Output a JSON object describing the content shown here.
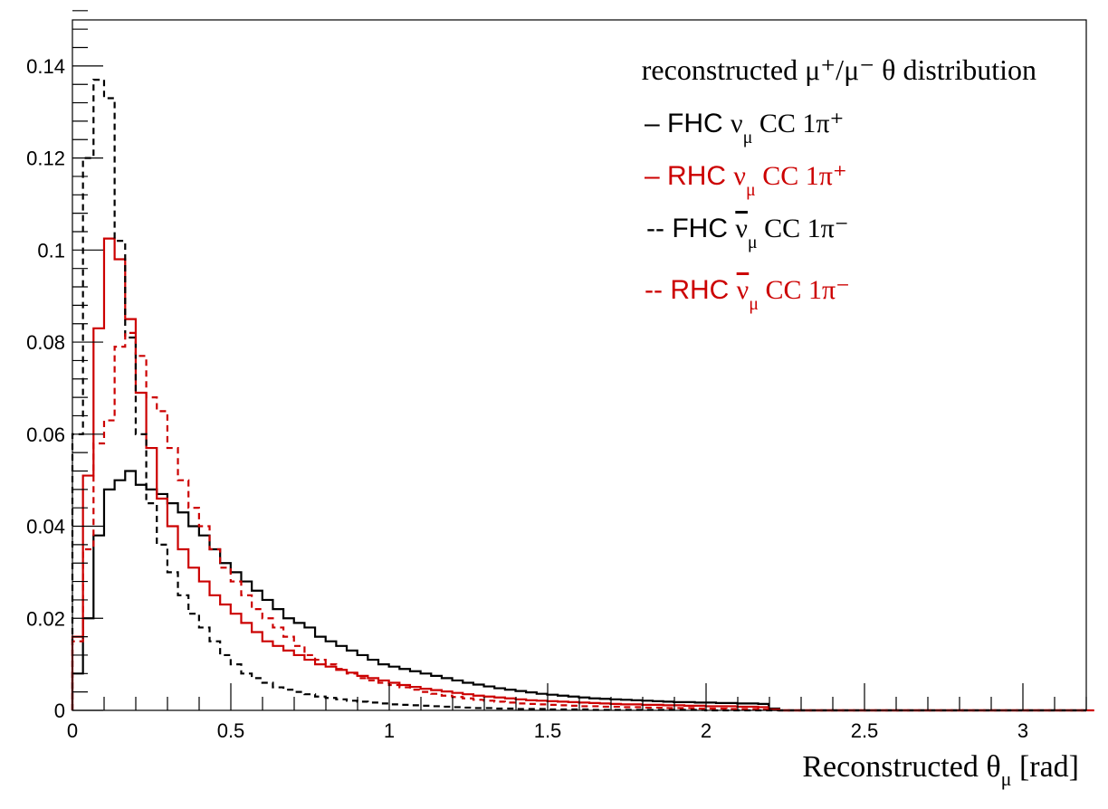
{
  "chart_data": {
    "type": "line",
    "style": "step-histogram",
    "title": "reconstructed μ⁺/μ⁻ θ distribution",
    "xlabel": "Reconstructed θ",
    "xlabel_sub": "μ",
    "xlabel_unit": "[rad]",
    "ylabel": "",
    "xlim": [
      0,
      3.2
    ],
    "ylim": [
      0,
      0.15
    ],
    "bin_width": 0.0333,
    "x_ticks": [
      0,
      0.5,
      1,
      1.5,
      2,
      2.5,
      3
    ],
    "x_tick_labels": [
      "0",
      "0.5",
      "1",
      "1.5",
      "2",
      "2.5",
      "3"
    ],
    "y_ticks": [
      0,
      0.02,
      0.04,
      0.06,
      0.08,
      0.1,
      0.12,
      0.14
    ],
    "y_tick_labels": [
      "0",
      "0.02",
      "0.04",
      "0.06",
      "0.08",
      "0.1",
      "0.12",
      "0.14"
    ],
    "grid": false,
    "legend_position": "top-right",
    "series": [
      {
        "name": "FHC ν CC 1π⁺",
        "legend": {
          "marker": "–",
          "pre": "FHC ",
          "nu": "ν",
          "bar": false,
          "sub": "μ",
          "post": " CC 1π⁺"
        },
        "color": "#000000",
        "dash": "solid",
        "values": [
          0.008,
          0.02,
          0.038,
          0.048,
          0.05,
          0.052,
          0.049,
          0.048,
          0.047,
          0.045,
          0.043,
          0.04,
          0.038,
          0.035,
          0.032,
          0.03,
          0.028,
          0.026,
          0.024,
          0.022,
          0.02,
          0.019,
          0.018,
          0.016,
          0.015,
          0.014,
          0.013,
          0.012,
          0.011,
          0.01,
          0.0095,
          0.009,
          0.0085,
          0.008,
          0.0075,
          0.007,
          0.0065,
          0.006,
          0.0056,
          0.0052,
          0.0048,
          0.0045,
          0.0042,
          0.0039,
          0.0036,
          0.0034,
          0.0032,
          0.003,
          0.0028,
          0.0026,
          0.0025,
          0.0024,
          0.0023,
          0.0022,
          0.0021,
          0.002,
          0.0019,
          0.0018,
          0.0018,
          0.0017,
          0.0017,
          0.0016,
          0.0016,
          0.0015,
          0.0015,
          0.0014,
          0.0004,
          0,
          0,
          0,
          0,
          0,
          0,
          0,
          0,
          0,
          0,
          0,
          0,
          0,
          0,
          0,
          0,
          0,
          0,
          0,
          0,
          0,
          0,
          0,
          0,
          0,
          0,
          0,
          0,
          0
        ]
      },
      {
        "name": "RHC ν CC 1π⁺",
        "legend": {
          "marker": "–",
          "pre": "RHC ",
          "nu": "ν",
          "bar": false,
          "sub": "μ",
          "post": " CC 1π⁺"
        },
        "color": "#cc0000",
        "dash": "solid",
        "values": [
          0.016,
          0.051,
          0.083,
          0.1025,
          0.098,
          0.085,
          0.069,
          0.057,
          0.046,
          0.04,
          0.035,
          0.031,
          0.028,
          0.025,
          0.023,
          0.021,
          0.019,
          0.017,
          0.015,
          0.014,
          0.013,
          0.012,
          0.011,
          0.01,
          0.0095,
          0.0088,
          0.0082,
          0.0075,
          0.007,
          0.0065,
          0.006,
          0.0055,
          0.0051,
          0.0047,
          0.0044,
          0.0041,
          0.0038,
          0.0035,
          0.0032,
          0.003,
          0.0028,
          0.0026,
          0.0024,
          0.0022,
          0.0021,
          0.002,
          0.0019,
          0.0018,
          0.0017,
          0.0016,
          0.0015,
          0.0014,
          0.0013,
          0.0013,
          0.0012,
          0.0012,
          0.0011,
          0.0011,
          0.001,
          0.001,
          0.0009,
          0.0009,
          0.0009,
          0.0008,
          0.0008,
          0.0007,
          0.0002,
          0,
          0,
          0,
          0,
          0,
          0,
          0,
          0,
          0,
          0,
          0,
          0,
          0,
          0,
          0,
          0,
          0,
          0,
          0,
          0,
          0,
          0,
          0,
          0,
          0,
          0,
          0,
          0,
          0
        ]
      },
      {
        "name": "FHC ν̄ CC 1π⁻",
        "legend": {
          "marker": "--",
          "pre": "FHC ",
          "nu": "ν",
          "bar": true,
          "sub": "μ",
          "post": " CC 1π⁻"
        },
        "color": "#000000",
        "dash": "dashed",
        "values": [
          0.06,
          0.12,
          0.137,
          0.133,
          0.102,
          0.081,
          0.06,
          0.045,
          0.036,
          0.03,
          0.025,
          0.021,
          0.018,
          0.015,
          0.012,
          0.01,
          0.008,
          0.007,
          0.006,
          0.005,
          0.0045,
          0.004,
          0.0035,
          0.003,
          0.0027,
          0.0024,
          0.0021,
          0.0019,
          0.0017,
          0.0015,
          0.0013,
          0.0012,
          0.0011,
          0.001,
          0.0009,
          0.0008,
          0.0007,
          0.0006,
          0.0005,
          0.0005,
          0.0004,
          0.0004,
          0.0003,
          0.0003,
          0.0003,
          0.0002,
          0.0002,
          0.0002,
          0.0002,
          0.0001,
          0.0001,
          0.0001,
          0.0001,
          0.0001,
          0.0001,
          0.0001,
          0.0001,
          0.0001,
          0.0001,
          0.0001,
          0,
          0,
          0,
          0,
          0,
          0,
          0,
          0,
          0,
          0,
          0,
          0,
          0,
          0,
          0,
          0,
          0,
          0,
          0,
          0,
          0,
          0,
          0,
          0,
          0,
          0,
          0,
          0,
          0,
          0,
          0,
          0,
          0,
          0,
          0,
          0
        ]
      },
      {
        "name": "RHC ν̄ CC 1π⁻",
        "legend": {
          "marker": "--",
          "pre": "RHC ",
          "nu": "ν",
          "bar": true,
          "sub": "μ",
          "post": " CC 1π⁻"
        },
        "color": "#cc0000",
        "dash": "dashed",
        "values": [
          0.015,
          0.035,
          0.058,
          0.063,
          0.079,
          0.082,
          0.077,
          0.068,
          0.065,
          0.057,
          0.05,
          0.044,
          0.04,
          0.035,
          0.031,
          0.028,
          0.025,
          0.022,
          0.02,
          0.018,
          0.016,
          0.014,
          0.012,
          0.011,
          0.01,
          0.009,
          0.008,
          0.007,
          0.0065,
          0.006,
          0.0055,
          0.005,
          0.0045,
          0.004,
          0.0036,
          0.0032,
          0.0029,
          0.0026,
          0.0023,
          0.0021,
          0.0019,
          0.0017,
          0.0015,
          0.0014,
          0.0013,
          0.0012,
          0.0011,
          0.001,
          0.0009,
          0.0009,
          0.0008,
          0.0008,
          0.0007,
          0.0007,
          0.0006,
          0.0006,
          0.0005,
          0.0005,
          0.0005,
          0.0004,
          0.0004,
          0.0004,
          0.0003,
          0.0003,
          0.0003,
          0.0002,
          0.0001,
          0,
          0,
          0,
          0,
          0,
          0,
          0,
          0,
          0,
          0,
          0,
          0,
          0,
          0,
          0,
          0,
          0,
          0,
          0,
          0,
          0,
          0,
          0,
          0,
          0,
          0,
          0,
          0,
          0,
          0
        ]
      }
    ]
  }
}
